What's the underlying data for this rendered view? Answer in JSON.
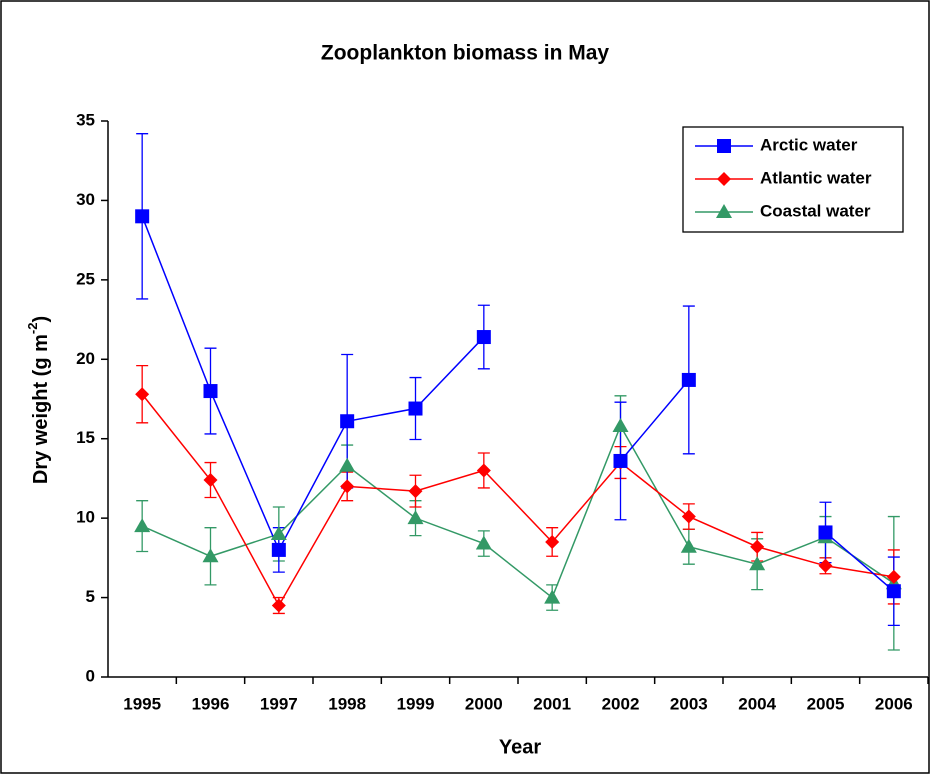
{
  "chart_data": {
    "type": "line",
    "title": "Zooplankton biomass in May",
    "x_label": "Year",
    "y_label": {
      "text": "Dry weight (g m",
      "superscript": "-2",
      "suffix": ")"
    },
    "categories": [
      "1995",
      "1996",
      "1997",
      "1998",
      "1999",
      "2000",
      "2001",
      "2002",
      "2003",
      "2004",
      "2005",
      "2006"
    ],
    "ylim": [
      0,
      35
    ],
    "yticks": [
      0,
      5,
      10,
      15,
      20,
      25,
      30,
      35
    ],
    "legend": "upper right",
    "series": [
      {
        "name": "Arctic water",
        "color": "#0000ff",
        "marker": "square",
        "values": [
          29.0,
          18.0,
          8.0,
          16.1,
          16.9,
          21.4,
          null,
          13.6,
          18.7,
          null,
          9.1,
          5.4
        ],
        "errors": [
          5.2,
          2.7,
          1.4,
          4.2,
          1.95,
          2.0,
          null,
          3.7,
          4.65,
          null,
          1.9,
          2.15
        ]
      },
      {
        "name": "Atlantic water",
        "color": "#ff0000",
        "marker": "diamond",
        "values": [
          17.8,
          12.4,
          4.5,
          12.0,
          11.7,
          13.0,
          8.5,
          13.5,
          10.1,
          8.2,
          7.0,
          6.3
        ],
        "errors": [
          1.8,
          1.1,
          0.5,
          0.9,
          1.0,
          1.1,
          0.9,
          1.0,
          0.8,
          0.9,
          0.5,
          1.7
        ]
      },
      {
        "name": "Coastal water",
        "color": "#339966",
        "marker": "triangle",
        "values": [
          9.5,
          7.6,
          9.0,
          13.3,
          10.0,
          8.4,
          5.0,
          15.8,
          8.2,
          7.1,
          8.8,
          5.9
        ],
        "errors": [
          1.6,
          1.8,
          1.7,
          1.3,
          1.1,
          0.8,
          0.8,
          1.9,
          1.1,
          1.6,
          1.3,
          4.2
        ]
      }
    ]
  }
}
